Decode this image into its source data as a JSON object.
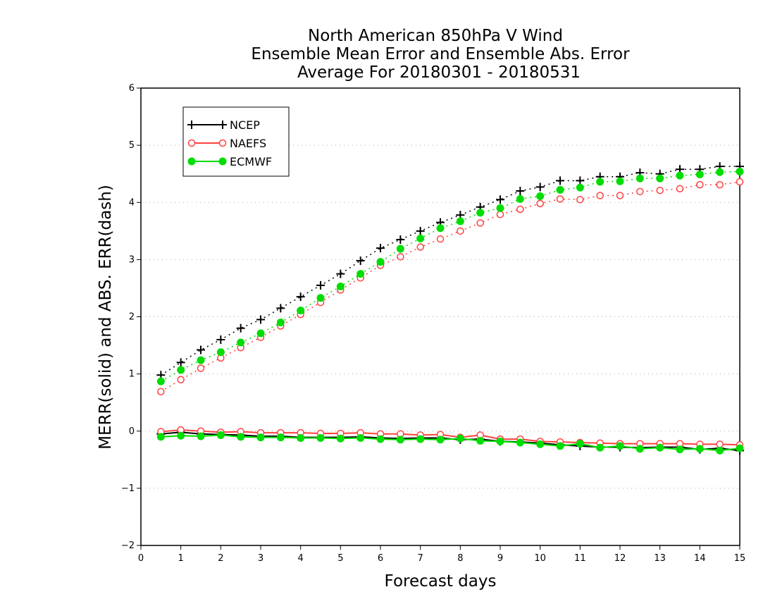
{
  "chart_data": {
    "type": "line",
    "title": [
      "North American 850hPa V Wind",
      "Ensemble Mean Error and Ensemble Abs. Error",
      "Average For 20180301 - 20180531"
    ],
    "xlabel": "Forecast days",
    "ylabel": "MERR(solid) and ABS. ERR(dash)",
    "xlim": [
      0,
      15
    ],
    "ylim": [
      -2,
      6
    ],
    "xticks": [
      0,
      1,
      2,
      3,
      4,
      5,
      6,
      7,
      8,
      9,
      10,
      11,
      12,
      13,
      14,
      15
    ],
    "yticks": [
      -2,
      -1,
      0,
      1,
      2,
      3,
      4,
      5,
      6
    ],
    "ytick_labels": [
      "−2",
      "−1",
      "0",
      "1",
      "2",
      "3",
      "4",
      "5",
      "6"
    ],
    "grid": "horizontal dotted",
    "legend_position": "top-left",
    "x": [
      0.5,
      1,
      1.5,
      2,
      2.5,
      3,
      3.5,
      4,
      4.5,
      5,
      5.5,
      6,
      6.5,
      7,
      7.5,
      8,
      8.5,
      9,
      9.5,
      10,
      10.5,
      11,
      11.5,
      12,
      12.5,
      13,
      13.5,
      14,
      14.5,
      15
    ],
    "series": [
      {
        "name": "NCEP",
        "color": "#000000",
        "marker": "plus",
        "abs_error": [
          0.98,
          1.2,
          1.42,
          1.6,
          1.8,
          1.95,
          2.15,
          2.35,
          2.55,
          2.75,
          2.98,
          3.2,
          3.35,
          3.5,
          3.65,
          3.78,
          3.92,
          4.05,
          4.2,
          4.27,
          4.38,
          4.38,
          4.45,
          4.45,
          4.52,
          4.5,
          4.58,
          4.58,
          4.63,
          4.63
        ],
        "mean_error": [
          -0.05,
          -0.02,
          -0.05,
          -0.06,
          -0.07,
          -0.09,
          -0.09,
          -0.11,
          -0.11,
          -0.11,
          -0.1,
          -0.12,
          -0.13,
          -0.12,
          -0.12,
          -0.15,
          -0.14,
          -0.18,
          -0.19,
          -0.21,
          -0.24,
          -0.26,
          -0.28,
          -0.28,
          -0.29,
          -0.28,
          -0.28,
          -0.32,
          -0.3,
          -0.34
        ]
      },
      {
        "name": "NAEFS",
        "color": "#ff4040",
        "marker": "open-circle",
        "abs_error": [
          0.69,
          0.9,
          1.1,
          1.28,
          1.46,
          1.64,
          1.84,
          2.04,
          2.25,
          2.47,
          2.68,
          2.9,
          3.05,
          3.22,
          3.36,
          3.5,
          3.64,
          3.79,
          3.88,
          3.98,
          4.06,
          4.05,
          4.12,
          4.12,
          4.19,
          4.21,
          4.24,
          4.31,
          4.31,
          4.36
        ],
        "mean_error": [
          -0.01,
          0.02,
          0.0,
          -0.02,
          -0.01,
          -0.03,
          -0.03,
          -0.03,
          -0.04,
          -0.04,
          -0.03,
          -0.05,
          -0.05,
          -0.07,
          -0.06,
          -0.11,
          -0.07,
          -0.14,
          -0.14,
          -0.18,
          -0.19,
          -0.2,
          -0.21,
          -0.22,
          -0.22,
          -0.22,
          -0.22,
          -0.23,
          -0.23,
          -0.24
        ]
      },
      {
        "name": "ECMWF",
        "color": "#00dd00",
        "marker": "filled-circle",
        "abs_error": [
          0.87,
          1.07,
          1.24,
          1.38,
          1.55,
          1.71,
          1.9,
          2.11,
          2.33,
          2.53,
          2.75,
          2.96,
          3.19,
          3.37,
          3.55,
          3.67,
          3.82,
          3.9,
          4.06,
          4.11,
          4.22,
          4.26,
          4.36,
          4.37,
          4.42,
          4.42,
          4.47,
          4.49,
          4.53,
          4.54
        ],
        "mean_error": [
          -0.1,
          -0.08,
          -0.09,
          -0.07,
          -0.1,
          -0.11,
          -0.11,
          -0.12,
          -0.12,
          -0.13,
          -0.12,
          -0.14,
          -0.15,
          -0.14,
          -0.15,
          -0.13,
          -0.17,
          -0.18,
          -0.2,
          -0.23,
          -0.26,
          -0.22,
          -0.29,
          -0.26,
          -0.31,
          -0.29,
          -0.32,
          -0.31,
          -0.34,
          -0.3
        ]
      }
    ]
  }
}
